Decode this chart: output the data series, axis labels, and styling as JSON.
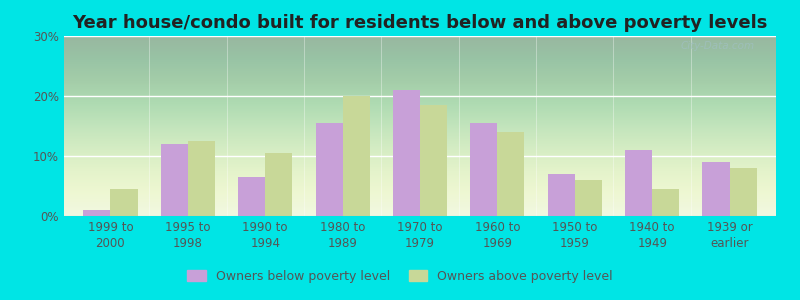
{
  "title": "Year house/condo built for residents below and above poverty levels",
  "categories": [
    "1999 to\n2000",
    "1995 to\n1998",
    "1990 to\n1994",
    "1980 to\n1989",
    "1970 to\n1979",
    "1960 to\n1969",
    "1950 to\n1959",
    "1940 to\n1949",
    "1939 or\nearlier"
  ],
  "below_poverty": [
    1.0,
    12.0,
    6.5,
    15.5,
    21.0,
    15.5,
    7.0,
    11.0,
    9.0
  ],
  "above_poverty": [
    4.5,
    12.5,
    10.5,
    20.0,
    18.5,
    14.0,
    6.0,
    4.5,
    8.0
  ],
  "below_color": "#c8a0d8",
  "above_color": "#c8d898",
  "ylim": [
    0,
    30
  ],
  "yticks": [
    0,
    10,
    20,
    30
  ],
  "ytick_labels": [
    "0%",
    "10%",
    "20%",
    "30%"
  ],
  "background_outer": "#00e5e5",
  "background_inner": "#eaf5e0",
  "legend_below": "Owners below poverty level",
  "legend_above": "Owners above poverty level",
  "bar_width": 0.35,
  "title_fontsize": 13,
  "tick_fontsize": 8.5,
  "legend_fontsize": 9,
  "watermark": "City-Data.com"
}
